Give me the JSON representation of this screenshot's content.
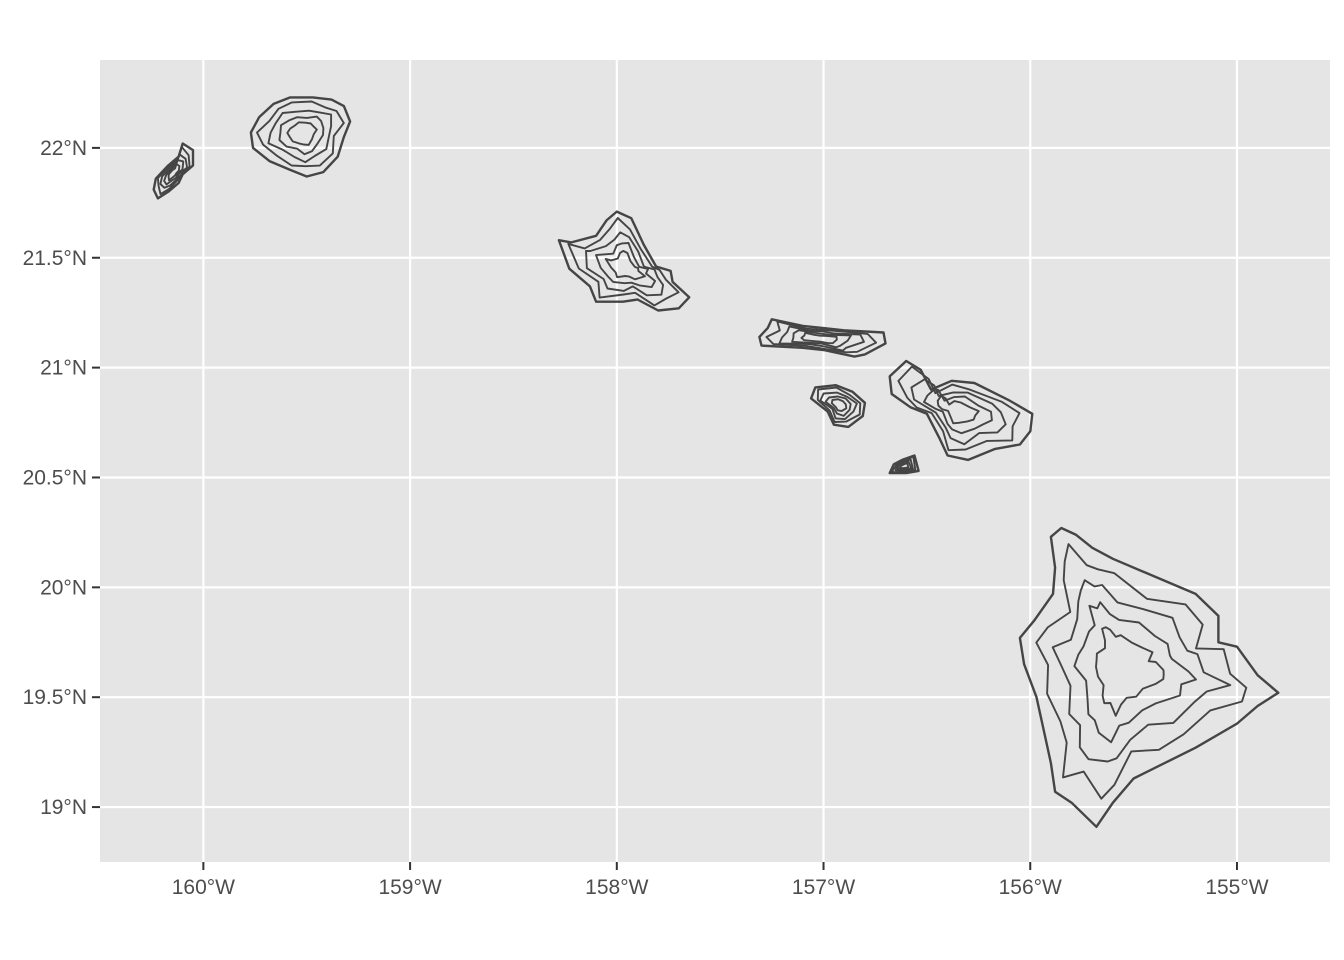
{
  "chart_data": {
    "type": "map",
    "projection": "longitude/latitude",
    "background": "#e5e5e5",
    "grid": true,
    "grid_color": "#ffffff",
    "outline_color": "#454545",
    "xlim": [
      -160.5,
      -154.55
    ],
    "ylim": [
      18.75,
      22.4
    ],
    "x_ticks": [
      {
        "value": -160,
        "label": "160°W"
      },
      {
        "value": -159,
        "label": "159°W"
      },
      {
        "value": -158,
        "label": "158°W"
      },
      {
        "value": -157,
        "label": "157°W"
      },
      {
        "value": -156,
        "label": "156°W"
      },
      {
        "value": -155,
        "label": "155°W"
      }
    ],
    "y_ticks": [
      {
        "value": 22,
        "label": "22°N"
      },
      {
        "value": 21.5,
        "label": "21.5°N"
      },
      {
        "value": 21,
        "label": "21°N"
      },
      {
        "value": 20.5,
        "label": "20.5°N"
      },
      {
        "value": 20,
        "label": "20°N"
      },
      {
        "value": 19.5,
        "label": "19.5°N"
      },
      {
        "value": 19,
        "label": "19°N"
      }
    ],
    "islands": [
      {
        "id": "niihau",
        "coords": [
          [
            -160.1,
            22.02
          ],
          [
            -160.05,
            21.99
          ],
          [
            -160.05,
            21.92
          ],
          [
            -160.1,
            21.88
          ],
          [
            -160.12,
            21.84
          ],
          [
            -160.17,
            21.8
          ],
          [
            -160.22,
            21.77
          ],
          [
            -160.24,
            21.81
          ],
          [
            -160.23,
            21.86
          ],
          [
            -160.17,
            21.92
          ],
          [
            -160.12,
            21.96
          ]
        ]
      },
      {
        "id": "kauai",
        "coords": [
          [
            -159.47,
            22.23
          ],
          [
            -159.38,
            22.22
          ],
          [
            -159.32,
            22.19
          ],
          [
            -159.29,
            22.12
          ],
          [
            -159.32,
            22.05
          ],
          [
            -159.35,
            21.96
          ],
          [
            -159.42,
            21.89
          ],
          [
            -159.5,
            21.87
          ],
          [
            -159.58,
            21.9
          ],
          [
            -159.68,
            21.94
          ],
          [
            -159.76,
            22.0
          ],
          [
            -159.77,
            22.07
          ],
          [
            -159.73,
            22.14
          ],
          [
            -159.66,
            22.2
          ],
          [
            -159.58,
            22.23
          ]
        ]
      },
      {
        "id": "oahu",
        "coords": [
          [
            -158.0,
            21.71
          ],
          [
            -157.93,
            21.68
          ],
          [
            -157.87,
            21.56
          ],
          [
            -157.81,
            21.46
          ],
          [
            -157.74,
            21.44
          ],
          [
            -157.73,
            21.39
          ],
          [
            -157.65,
            21.32
          ],
          [
            -157.7,
            21.27
          ],
          [
            -157.8,
            21.26
          ],
          [
            -157.9,
            21.31
          ],
          [
            -157.97,
            21.3
          ],
          [
            -158.1,
            21.3
          ],
          [
            -158.13,
            21.37
          ],
          [
            -158.23,
            21.45
          ],
          [
            -158.28,
            21.58
          ],
          [
            -158.22,
            21.57
          ],
          [
            -158.1,
            21.6
          ],
          [
            -158.05,
            21.67
          ]
        ]
      },
      {
        "id": "molokai",
        "coords": [
          [
            -157.25,
            21.22
          ],
          [
            -157.1,
            21.19
          ],
          [
            -157.0,
            21.18
          ],
          [
            -156.9,
            21.17
          ],
          [
            -156.71,
            21.16
          ],
          [
            -156.7,
            21.11
          ],
          [
            -156.8,
            21.06
          ],
          [
            -156.85,
            21.05
          ],
          [
            -157.0,
            21.08
          ],
          [
            -157.1,
            21.09
          ],
          [
            -157.3,
            21.1
          ],
          [
            -157.31,
            21.14
          ],
          [
            -157.27,
            21.18
          ]
        ]
      },
      {
        "id": "lanai",
        "coords": [
          [
            -156.94,
            20.92
          ],
          [
            -156.86,
            20.89
          ],
          [
            -156.8,
            20.84
          ],
          [
            -156.81,
            20.78
          ],
          [
            -156.88,
            20.73
          ],
          [
            -156.95,
            20.74
          ],
          [
            -156.98,
            20.8
          ],
          [
            -157.06,
            20.86
          ],
          [
            -157.04,
            20.91
          ]
        ]
      },
      {
        "id": "maui",
        "coords": [
          [
            -156.6,
            21.03
          ],
          [
            -156.53,
            20.99
          ],
          [
            -156.48,
            20.9
          ],
          [
            -156.38,
            20.94
          ],
          [
            -156.27,
            20.93
          ],
          [
            -156.1,
            20.85
          ],
          [
            -155.99,
            20.79
          ],
          [
            -156.0,
            20.71
          ],
          [
            -156.05,
            20.65
          ],
          [
            -156.17,
            20.63
          ],
          [
            -156.3,
            20.58
          ],
          [
            -156.4,
            20.6
          ],
          [
            -156.44,
            20.68
          ],
          [
            -156.5,
            20.79
          ],
          [
            -156.58,
            20.82
          ],
          [
            -156.67,
            20.88
          ],
          [
            -156.68,
            20.96
          ]
        ]
      },
      {
        "id": "kahoolawe",
        "coords": [
          [
            -156.56,
            20.6
          ],
          [
            -156.54,
            20.53
          ],
          [
            -156.6,
            20.52
          ],
          [
            -156.68,
            20.52
          ],
          [
            -156.66,
            20.56
          ],
          [
            -156.62,
            20.58
          ]
        ]
      },
      {
        "id": "hawaii",
        "coords": [
          [
            -155.85,
            20.27
          ],
          [
            -155.78,
            20.24
          ],
          [
            -155.7,
            20.18
          ],
          [
            -155.6,
            20.13
          ],
          [
            -155.4,
            20.05
          ],
          [
            -155.2,
            19.97
          ],
          [
            -155.09,
            19.87
          ],
          [
            -155.09,
            19.75
          ],
          [
            -155.0,
            19.73
          ],
          [
            -154.9,
            19.6
          ],
          [
            -154.8,
            19.52
          ],
          [
            -154.9,
            19.46
          ],
          [
            -155.0,
            19.38
          ],
          [
            -155.2,
            19.27
          ],
          [
            -155.35,
            19.2
          ],
          [
            -155.5,
            19.13
          ],
          [
            -155.6,
            19.02
          ],
          [
            -155.68,
            18.91
          ],
          [
            -155.8,
            19.02
          ],
          [
            -155.88,
            19.07
          ],
          [
            -155.9,
            19.2
          ],
          [
            -155.93,
            19.33
          ],
          [
            -155.97,
            19.5
          ],
          [
            -156.03,
            19.65
          ],
          [
            -156.05,
            19.77
          ],
          [
            -155.98,
            19.85
          ],
          [
            -155.89,
            19.97
          ],
          [
            -155.88,
            20.09
          ],
          [
            -155.9,
            20.23
          ]
        ]
      }
    ]
  }
}
